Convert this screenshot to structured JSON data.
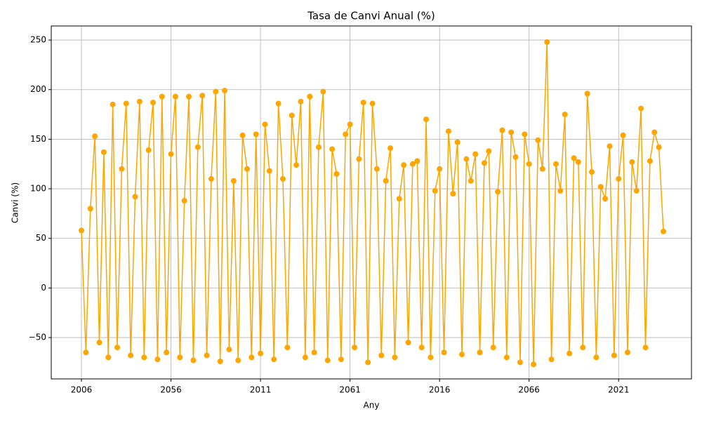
{
  "chart_data": {
    "type": "line",
    "title": "Tasa de Canvi Anual (%)",
    "xlabel": "Any",
    "ylabel": "Canvi (%)",
    "color": "#ffa500",
    "grid": true,
    "ylim": [
      -91.7,
      264.2
    ],
    "yticks": [
      {
        "value": -50,
        "label": "−50"
      },
      0,
      50,
      100,
      150,
      200,
      250
    ],
    "categories": [
      "2006",
      null,
      null,
      null,
      null,
      null,
      null,
      null,
      null,
      null,
      null,
      null,
      null,
      null,
      null,
      null,
      null,
      null,
      null,
      null,
      "2056",
      null,
      null,
      null,
      null,
      null,
      null,
      null,
      null,
      null,
      null,
      null,
      null,
      null,
      null,
      null,
      null,
      null,
      null,
      null,
      "2011",
      null,
      null,
      null,
      null,
      null,
      null,
      null,
      null,
      null,
      null,
      null,
      null,
      null,
      null,
      null,
      null,
      null,
      null,
      null,
      "2061",
      null,
      null,
      null,
      null,
      null,
      null,
      null,
      null,
      null,
      null,
      null,
      null,
      null,
      null,
      null,
      null,
      null,
      null,
      null,
      "2016",
      null,
      null,
      null,
      null,
      null,
      null,
      null,
      null,
      null,
      null,
      null,
      null,
      null,
      null,
      null,
      null,
      null,
      null,
      null,
      "2066",
      null,
      null,
      null,
      null,
      null,
      null,
      null,
      null,
      null,
      null,
      null,
      null,
      null,
      null,
      null,
      null,
      null,
      null,
      null,
      "2021",
      null,
      null,
      null,
      null,
      null,
      null,
      null,
      null,
      null,
      null
    ],
    "values": [
      58,
      -65,
      80,
      153,
      -55,
      137,
      -70,
      185,
      -60,
      120,
      186,
      -68,
      92,
      188,
      -70,
      139,
      187,
      -72,
      193,
      -65,
      135,
      193,
      -70,
      88,
      193,
      -73,
      142,
      194,
      -68,
      110,
      198,
      -74,
      199,
      -62,
      108,
      -73,
      154,
      120,
      -70,
      155,
      -66,
      165,
      118,
      -72,
      186,
      110,
      -60,
      174,
      124,
      188,
      -70,
      193,
      -65,
      142,
      198,
      -73,
      140,
      115,
      -72,
      155,
      165,
      -60,
      130,
      187,
      -75,
      186,
      120,
      -68,
      108,
      141,
      -70,
      90,
      124,
      -55,
      125,
      128,
      -60,
      170,
      -70,
      98,
      120,
      -65,
      158,
      95,
      147,
      -67,
      130,
      108,
      135,
      -65,
      126,
      138,
      -60,
      97,
      159,
      -70,
      157,
      132,
      -75,
      155,
      125,
      -77,
      149,
      120,
      248,
      -72,
      125,
      98,
      175,
      -66,
      131,
      127,
      -60,
      196,
      117,
      -70,
      102,
      90,
      143,
      -68,
      110,
      154,
      -65,
      127,
      98,
      181,
      -60,
      128,
      157,
      142,
      57
    ]
  }
}
